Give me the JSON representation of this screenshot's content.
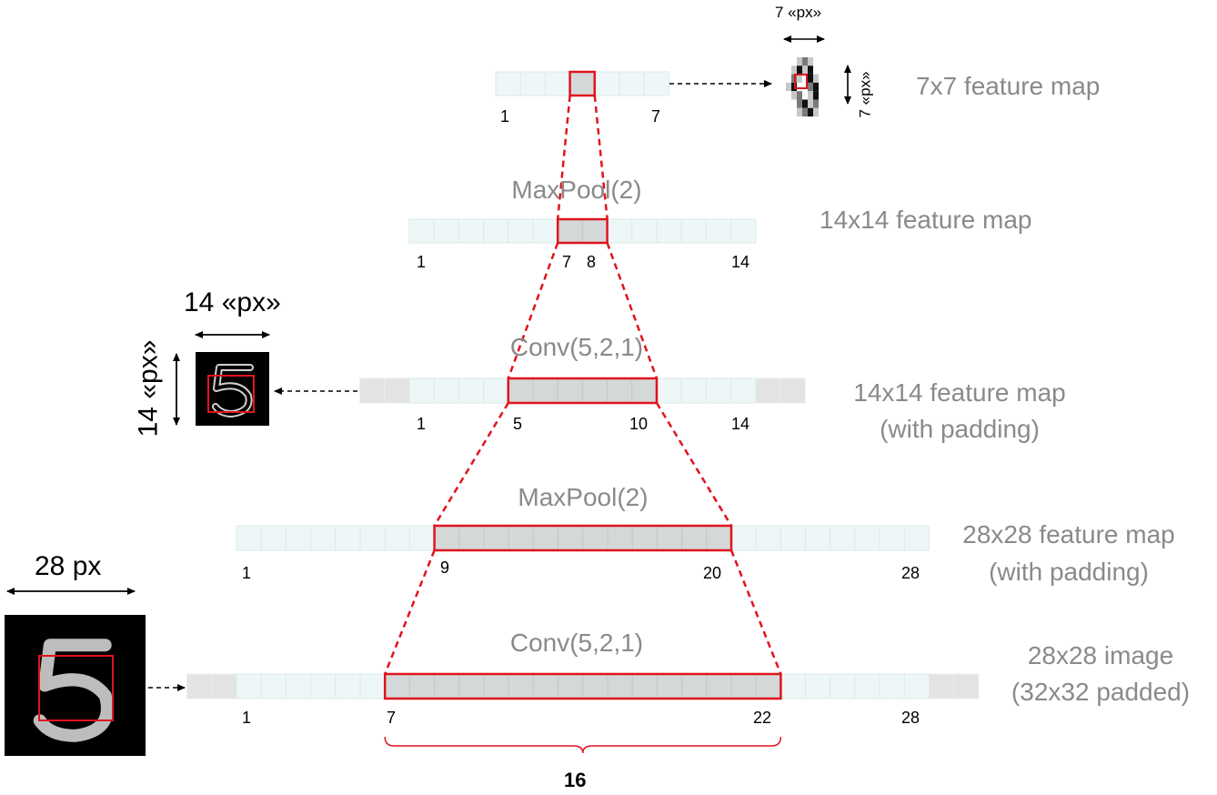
{
  "layers": [
    {
      "id": "l7",
      "label": "7x7 feature map",
      "op": "",
      "ticks": [
        "1",
        "7"
      ]
    },
    {
      "id": "l14a",
      "label": "14x14 feature map",
      "op": "MaxPool(2)",
      "ticks": [
        "1",
        "7",
        "8",
        "14"
      ]
    },
    {
      "id": "l14b",
      "label_line1": "14x14 feature map",
      "label_line2": "(with padding)",
      "op": "Conv(5,2,1)",
      "ticks": [
        "1",
        "5",
        "10",
        "14"
      ]
    },
    {
      "id": "l28a",
      "label_line1": "28x28 feature map",
      "label_line2": "(with padding)",
      "op": "MaxPool(2)",
      "ticks": [
        "1",
        "9",
        "20",
        "28"
      ]
    },
    {
      "id": "l28b",
      "label_line1": "28x28 image",
      "label_line2": "(32x32 padded)",
      "op": "Conv(5,2,1)",
      "ticks": [
        "1",
        "7",
        "22",
        "28"
      ]
    }
  ],
  "dims": {
    "small": "7 «px»",
    "small_v": "7 «px»",
    "mid": "14 «px»",
    "mid_v": "14 «px»",
    "big": "28 px"
  },
  "receptive_field": "16",
  "colors": {
    "cell_fill": "#eef7f7",
    "cell_border": "#dbeaea",
    "pad_fill": "#e3e3e3",
    "highlight_fill": "#d5d8d8",
    "red": "#e0141e",
    "grey_text": "#8a8a8a"
  }
}
